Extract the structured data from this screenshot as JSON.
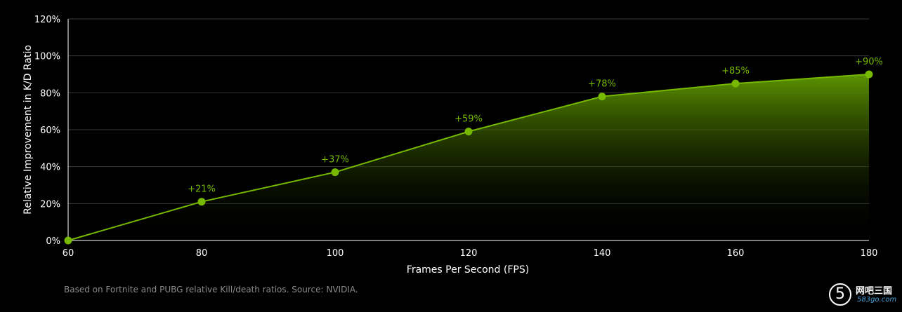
{
  "chart_data": {
    "type": "area",
    "xlabel": "Frames Per Second (FPS)",
    "ylabel": "Relative Improvement in K/D Ratio",
    "x": [
      60,
      80,
      100,
      120,
      140,
      160,
      180
    ],
    "x_ticks": [
      "60",
      "80",
      "100",
      "120",
      "140",
      "160",
      "180"
    ],
    "y_ticks": [
      "0%",
      "20%",
      "40%",
      "60%",
      "80%",
      "100%",
      "120%"
    ],
    "xlim": [
      60,
      180
    ],
    "ylim": [
      0,
      120
    ],
    "series": [
      {
        "values": [
          0,
          21,
          37,
          59,
          78,
          85,
          90
        ],
        "data_labels": [
          "",
          "+21%",
          "+37%",
          "+59%",
          "+78%",
          "+85%",
          "+90%"
        ]
      }
    ],
    "grid": true,
    "colors": {
      "line": "#76b900",
      "fill_top": "#5c9400",
      "grid": "#3a3a3a",
      "axis": "#ffffff",
      "background": "#000000"
    }
  },
  "footnote": "Based on Fortnite and PUBG relative Kill/death ratios. Source: NVIDIA.",
  "watermark": {
    "badge": "5",
    "main": "网吧三国",
    "sub": "583go.com"
  }
}
